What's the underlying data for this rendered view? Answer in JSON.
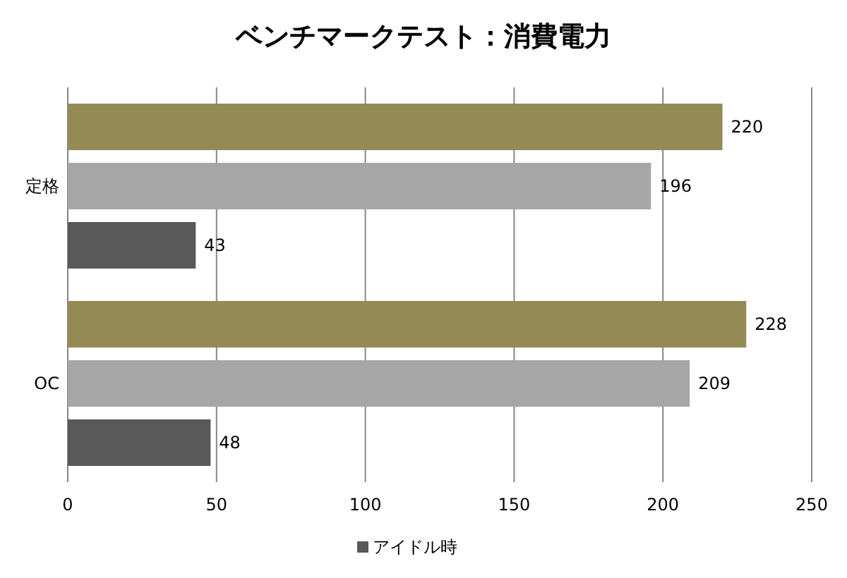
{
  "chart_data": {
    "type": "bar",
    "orientation": "horizontal",
    "title": "ベンチマークテスト：消費電力",
    "categories": [
      "定格",
      "OC"
    ],
    "series": [
      {
        "color": "#948a54",
        "values": [
          220,
          228
        ]
      },
      {
        "color": "#a6a6a6",
        "values": [
          196,
          209
        ]
      },
      {
        "name": "アイドル時",
        "color": "#595959",
        "values": [
          43,
          48
        ]
      }
    ],
    "xlim": [
      0,
      250
    ],
    "xticks": [
      0,
      50,
      100,
      150,
      200,
      250
    ],
    "grid": "x",
    "legend": "bottom",
    "data_labels": true
  }
}
